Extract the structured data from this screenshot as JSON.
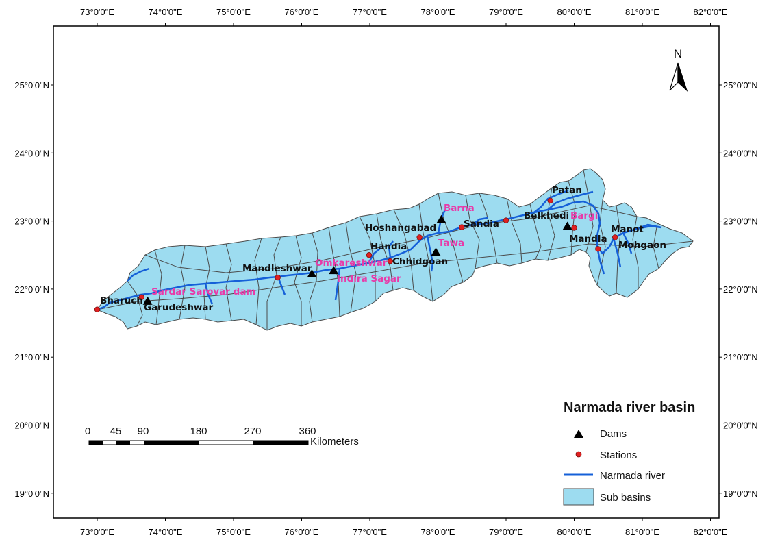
{
  "map": {
    "lon_labels": [
      "73°0'0\"E",
      "74°0'0\"E",
      "75°0'0\"E",
      "76°0'0\"E",
      "77°0'0\"E",
      "78°0'0\"E",
      "79°0'0\"E",
      "80°0'0\"E",
      "81°0'0\"E",
      "82°0'0\"E"
    ],
    "lat_labels": [
      "25°0'0\"N",
      "24°0'0\"N",
      "23°0'0\"N",
      "22°0'0\"N",
      "21°0'0\"N",
      "20°0'0\"N",
      "19°0'0\"N"
    ],
    "north_label": "N",
    "colors": {
      "basin_fill": "#9ddcf0",
      "basin_stroke": "#4a4a4a",
      "river": "#1560d8",
      "station": "#e02020",
      "dam": "#000000",
      "dam_label": "#e83aa8",
      "station_label": "#111111"
    },
    "stations": [
      {
        "name": "Bharuch",
        "lon": 73.0,
        "lat": 21.7
      },
      {
        "name": "Garudeshwar",
        "lon": 73.65,
        "lat": 21.88
      },
      {
        "name": "Mandleshwar",
        "lon": 75.65,
        "lat": 22.17
      },
      {
        "name": "Handia",
        "lon": 76.99,
        "lat": 22.5
      },
      {
        "name": "Chhidgoan",
        "lon": 77.3,
        "lat": 22.41
      },
      {
        "name": "Hoshangabad",
        "lon": 77.73,
        "lat": 22.76
      },
      {
        "name": "Sandia",
        "lon": 78.35,
        "lat": 22.91
      },
      {
        "name": "Belkhedi",
        "lon": 79.0,
        "lat": 23.01
      },
      {
        "name": "Patan",
        "lon": 79.65,
        "lat": 23.3
      },
      {
        "name": "Mandla",
        "lon": 80.35,
        "lat": 22.59
      },
      {
        "name": "Manot",
        "lon": 80.6,
        "lat": 22.76
      },
      {
        "name": "Mohgaon",
        "lon": 80.0,
        "lat": 22.9
      }
    ],
    "dams": [
      {
        "name": "Sardar Sarovar dam",
        "lon": 73.74,
        "lat": 21.82
      },
      {
        "name": "Omkareshwar",
        "lon": 76.15,
        "lat": 22.22
      },
      {
        "name": "Indira Sagar",
        "lon": 76.47,
        "lat": 22.27
      },
      {
        "name": "Tawa",
        "lon": 77.97,
        "lat": 22.54
      },
      {
        "name": "Barna",
        "lon": 78.05,
        "lat": 23.02
      },
      {
        "name": "Bargi",
        "lon": 79.9,
        "lat": 22.92
      }
    ],
    "labels": [
      {
        "text": "Bharuch",
        "style": "black"
      },
      {
        "text": "Garudeshwar",
        "style": "black"
      },
      {
        "text": "Sardar Sarovar dam",
        "style": "pink"
      },
      {
        "text": "Mandleshwar",
        "style": "black"
      },
      {
        "text": "Omkareshwar",
        "style": "pink"
      },
      {
        "text": "Indira Sagar",
        "style": "pink"
      },
      {
        "text": "Handia",
        "style": "black"
      },
      {
        "text": "Chhidgoan",
        "style": "black"
      },
      {
        "text": "Hoshangabad",
        "style": "black"
      },
      {
        "text": "Tawa",
        "style": "pink"
      },
      {
        "text": "Barna",
        "style": "pink"
      },
      {
        "text": "Sandia",
        "style": "black"
      },
      {
        "text": "Belkhedi",
        "style": "black"
      },
      {
        "text": "Bargi",
        "style": "pink"
      },
      {
        "text": "Patan",
        "style": "black"
      },
      {
        "text": "Mandla",
        "style": "black"
      },
      {
        "text": "Manot",
        "style": "black"
      },
      {
        "text": "Mohgaon",
        "style": "black"
      }
    ]
  },
  "legend": {
    "title": "Narmada river basin",
    "items": [
      {
        "label": "Dams",
        "symbol": "triangle"
      },
      {
        "label": "Stations",
        "symbol": "dot"
      },
      {
        "label": "Narmada river",
        "symbol": "line"
      },
      {
        "label": "Sub basins",
        "symbol": "box"
      }
    ]
  },
  "scale_bar": {
    "ticks": [
      "0",
      "45",
      "90",
      "180",
      "270",
      "360"
    ],
    "unit": "Kilometers"
  }
}
